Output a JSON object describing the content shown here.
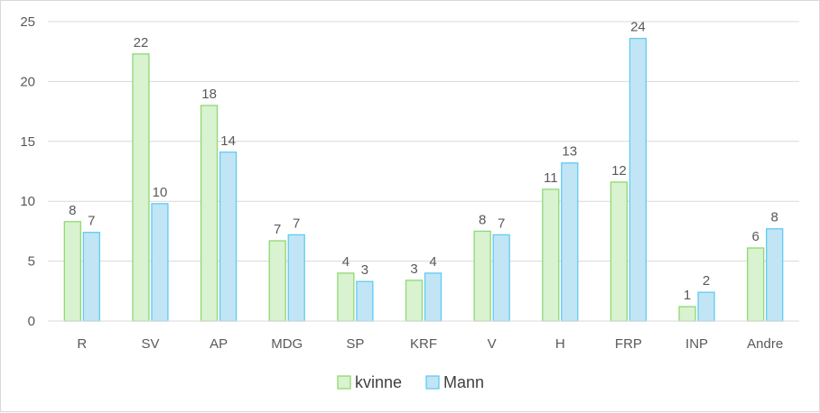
{
  "chart_data": {
    "type": "bar",
    "categories": [
      "R",
      "SV",
      "AP",
      "MDG",
      "SP",
      "KRF",
      "V",
      "H",
      "FRP",
      "INP",
      "Andre"
    ],
    "series": [
      {
        "name": "kvinne",
        "values": [
          8.3,
          22.3,
          18.0,
          6.7,
          4.0,
          3.4,
          7.5,
          11.0,
          11.6,
          1.2,
          6.1
        ],
        "labels": [
          "8",
          "22",
          "18",
          "7",
          "4",
          "3",
          "8",
          "11",
          "12",
          "1",
          "6"
        ],
        "fill": "#d9f2d0",
        "stroke": "#8ed973"
      },
      {
        "name": "Mann",
        "values": [
          7.4,
          9.8,
          14.1,
          7.2,
          3.3,
          4.0,
          7.2,
          13.2,
          23.6,
          2.4,
          7.7
        ],
        "labels": [
          "7",
          "10",
          "14",
          "7",
          "3",
          "4",
          "7",
          "13",
          "24",
          "2",
          "8"
        ],
        "fill": "#c1e5f5",
        "stroke": "#61cbf3"
      }
    ],
    "title": "",
    "xlabel": "",
    "ylabel": "",
    "ylim": [
      0,
      25
    ],
    "yticks": [
      0,
      5,
      10,
      15,
      20,
      25
    ],
    "grid": true,
    "legend": "bottom-center",
    "gridColor": "#d9d9d9",
    "axisColor": "#d9d9d9"
  }
}
